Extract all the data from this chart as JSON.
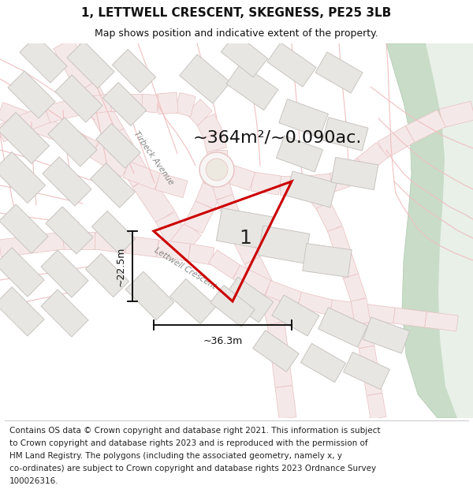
{
  "title": "1, LETTWELL CRESCENT, SKEGNESS, PE25 3LB",
  "subtitle": "Map shows position and indicative extent of the property.",
  "area_text": "~364m²/~0.090ac.",
  "width_label": "~36.3m",
  "height_label": "~22.5m",
  "plot_label": "1",
  "footer_lines": [
    "Contains OS data © Crown copyright and database right 2021. This information is subject",
    "to Crown copyright and database rights 2023 and is reproduced with the permission of",
    "HM Land Registry. The polygons (including the associated geometry, namely x, y",
    "co-ordinates) are subject to Crown copyright and database rights 2023 Ordnance Survey",
    "100026316."
  ],
  "title_fontsize": 11,
  "subtitle_fontsize": 9,
  "area_fontsize": 16,
  "footer_fontsize": 7.5,
  "map_bg": "#f7f6f4",
  "road_fill": "#f5e8e8",
  "road_edge": "#e8c0c0",
  "thin_line_color": "#f0c0c0",
  "building_fill": "#e8e6e3",
  "building_edge": "#c8c4c0",
  "plot_color": "#cc0000",
  "green_fill": "#d8e8d4",
  "green_edge": "#c0d4b8",
  "river_fill": "#c8dcc8",
  "river_edge": "#b0c8b0"
}
